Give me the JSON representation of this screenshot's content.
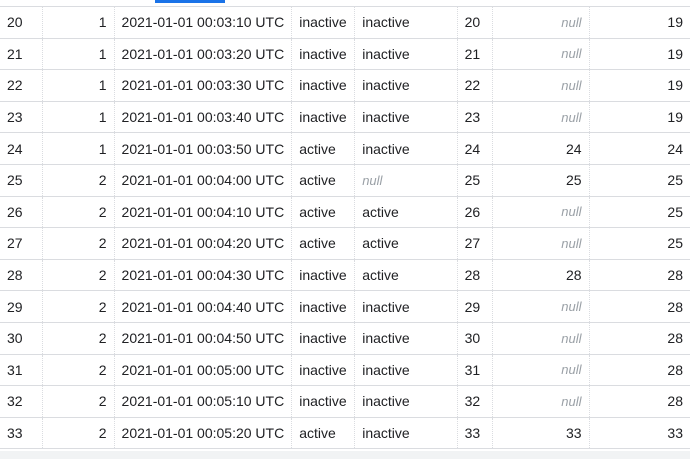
{
  "results": {
    "rows": [
      {
        "row": "20",
        "seg": "1",
        "ts": "2021-01-01 00:03:10 UTC",
        "s1": "inactive",
        "s2": "inactive",
        "id": "20",
        "val": "null",
        "last": "19"
      },
      {
        "row": "21",
        "seg": "1",
        "ts": "2021-01-01 00:03:20 UTC",
        "s1": "inactive",
        "s2": "inactive",
        "id": "21",
        "val": "null",
        "last": "19"
      },
      {
        "row": "22",
        "seg": "1",
        "ts": "2021-01-01 00:03:30 UTC",
        "s1": "inactive",
        "s2": "inactive",
        "id": "22",
        "val": "null",
        "last": "19"
      },
      {
        "row": "23",
        "seg": "1",
        "ts": "2021-01-01 00:03:40 UTC",
        "s1": "inactive",
        "s2": "inactive",
        "id": "23",
        "val": "null",
        "last": "19"
      },
      {
        "row": "24",
        "seg": "1",
        "ts": "2021-01-01 00:03:50 UTC",
        "s1": "active",
        "s2": "inactive",
        "id": "24",
        "val": "24",
        "last": "24"
      },
      {
        "row": "25",
        "seg": "2",
        "ts": "2021-01-01 00:04:00 UTC",
        "s1": "active",
        "s2": "null",
        "id": "25",
        "val": "25",
        "last": "25"
      },
      {
        "row": "26",
        "seg": "2",
        "ts": "2021-01-01 00:04:10 UTC",
        "s1": "active",
        "s2": "active",
        "id": "26",
        "val": "null",
        "last": "25"
      },
      {
        "row": "27",
        "seg": "2",
        "ts": "2021-01-01 00:04:20 UTC",
        "s1": "active",
        "s2": "active",
        "id": "27",
        "val": "null",
        "last": "25"
      },
      {
        "row": "28",
        "seg": "2",
        "ts": "2021-01-01 00:04:30 UTC",
        "s1": "inactive",
        "s2": "active",
        "id": "28",
        "val": "28",
        "last": "28"
      },
      {
        "row": "29",
        "seg": "2",
        "ts": "2021-01-01 00:04:40 UTC",
        "s1": "inactive",
        "s2": "inactive",
        "id": "29",
        "val": "null",
        "last": "28"
      },
      {
        "row": "30",
        "seg": "2",
        "ts": "2021-01-01 00:04:50 UTC",
        "s1": "inactive",
        "s2": "inactive",
        "id": "30",
        "val": "null",
        "last": "28"
      },
      {
        "row": "31",
        "seg": "2",
        "ts": "2021-01-01 00:05:00 UTC",
        "s1": "inactive",
        "s2": "inactive",
        "id": "31",
        "val": "null",
        "last": "28"
      },
      {
        "row": "32",
        "seg": "2",
        "ts": "2021-01-01 00:05:10 UTC",
        "s1": "inactive",
        "s2": "inactive",
        "id": "32",
        "val": "null",
        "last": "28"
      },
      {
        "row": "33",
        "seg": "2",
        "ts": "2021-01-01 00:05:20 UTC",
        "s1": "active",
        "s2": "inactive",
        "id": "33",
        "val": "33",
        "last": "33"
      }
    ]
  },
  "colors": {
    "null_text": "#9aa0a6",
    "grid_line": "#dadce0",
    "accent": "#1a73e8"
  }
}
